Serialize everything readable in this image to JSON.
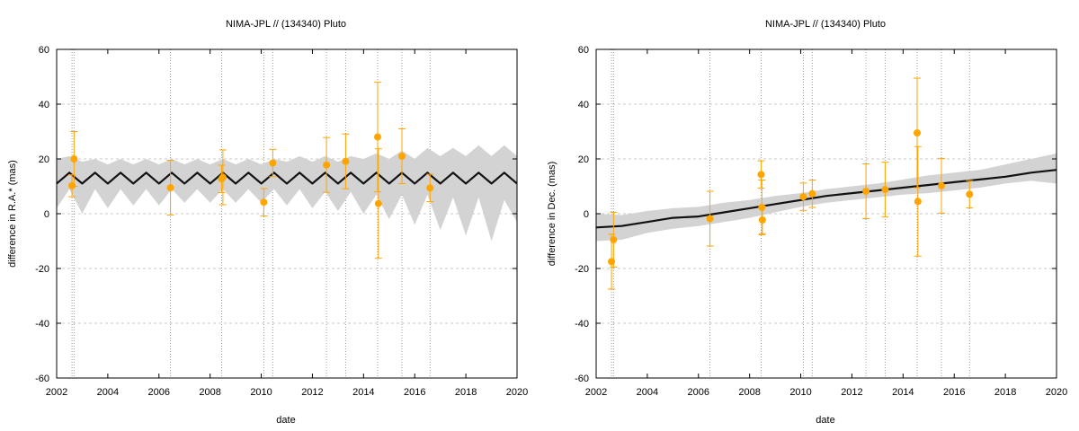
{
  "chart_data": [
    {
      "type": "line",
      "title": "NIMA-JPL // (134340) Pluto",
      "xlabel": "date",
      "ylabel": "difference in R.A.* (mas)",
      "xlim": [
        2002,
        2020
      ],
      "ylim": [
        -60,
        60
      ],
      "x_ticks": [
        2002,
        2004,
        2006,
        2008,
        2010,
        2012,
        2014,
        2016,
        2018,
        2020
      ],
      "y_ticks": [
        -60,
        -40,
        -20,
        0,
        20,
        40,
        60
      ],
      "grid": true,
      "line_color": "#111111",
      "band_color": "#d3d3d3",
      "point_color": "#ffa500",
      "model": {
        "x": [
          2002.0,
          2002.5,
          2003.0,
          2003.5,
          2004.0,
          2004.5,
          2005.0,
          2005.5,
          2006.0,
          2006.5,
          2007.0,
          2007.5,
          2008.0,
          2008.5,
          2009.0,
          2009.5,
          2010.0,
          2010.5,
          2011.0,
          2011.5,
          2012.0,
          2012.5,
          2013.0,
          2013.5,
          2014.0,
          2014.5,
          2015.0,
          2015.5,
          2016.0,
          2016.5,
          2017.0,
          2017.5,
          2018.0,
          2018.5,
          2019.0,
          2019.5,
          2020.0
        ],
        "y": [
          11,
          15,
          11,
          15,
          11,
          15,
          11,
          15,
          11,
          15,
          11,
          15,
          11,
          15,
          11,
          15,
          11,
          15,
          11,
          15,
          11,
          15,
          11,
          15,
          11,
          15,
          11,
          15,
          11,
          15,
          11,
          15,
          11,
          15,
          11,
          15,
          11
        ],
        "band_upper": [
          20,
          21,
          19,
          20,
          18,
          20,
          18,
          20,
          18,
          20,
          18,
          20,
          18,
          20,
          18,
          20,
          18,
          20,
          19,
          21,
          19,
          21,
          19,
          21,
          20,
          22,
          20,
          23,
          20,
          24,
          21,
          24,
          21,
          25,
          21,
          25,
          21
        ],
        "band_lower": [
          2,
          9,
          0,
          9,
          2,
          9,
          3,
          9,
          3,
          9,
          4,
          9,
          4,
          9,
          4,
          9,
          4,
          9,
          3,
          9,
          2,
          8,
          1,
          8,
          0,
          7,
          -2,
          7,
          -4,
          7,
          -6,
          6,
          -8,
          6,
          -10,
          5,
          -3
        ]
      },
      "observations": [
        {
          "x": 2002.6,
          "y": 10.2,
          "err": 4
        },
        {
          "x": 2002.68,
          "y": 20.0,
          "err": 10
        },
        {
          "x": 2006.45,
          "y": 9.5,
          "err": 10
        },
        {
          "x": 2008.45,
          "y": 12.7,
          "err": 5
        },
        {
          "x": 2008.5,
          "y": 13.3,
          "err": 10
        },
        {
          "x": 2010.1,
          "y": 4.2,
          "err": 5
        },
        {
          "x": 2010.45,
          "y": 18.5,
          "err": 5
        },
        {
          "x": 2012.55,
          "y": 17.8,
          "err": 10
        },
        {
          "x": 2013.3,
          "y": 19.1,
          "err": 10
        },
        {
          "x": 2014.55,
          "y": 28.0,
          "err": 20
        },
        {
          "x": 2014.58,
          "y": 3.7,
          "err": 20
        },
        {
          "x": 2015.5,
          "y": 21.0,
          "err": 10
        },
        {
          "x": 2016.6,
          "y": 9.4,
          "err": 5
        }
      ],
      "vlines": [
        2002.6,
        2002.68,
        2006.45,
        2008.45,
        2010.1,
        2010.45,
        2012.55,
        2013.3,
        2014.55,
        2015.5,
        2016.6
      ]
    },
    {
      "type": "line",
      "title": "NIMA-JPL // (134340) Pluto",
      "xlabel": "date",
      "ylabel": "difference in Dec. (mas)",
      "xlim": [
        2002,
        2020
      ],
      "ylim": [
        -60,
        60
      ],
      "x_ticks": [
        2002,
        2004,
        2006,
        2008,
        2010,
        2012,
        2014,
        2016,
        2018,
        2020
      ],
      "y_ticks": [
        -60,
        -40,
        -20,
        0,
        20,
        40,
        60
      ],
      "grid": true,
      "line_color": "#111111",
      "band_color": "#d3d3d3",
      "point_color": "#ffa500",
      "model": {
        "x": [
          2002.0,
          2003.0,
          2004.0,
          2005.0,
          2006.0,
          2007.0,
          2008.0,
          2009.0,
          2010.0,
          2011.0,
          2012.0,
          2013.0,
          2014.0,
          2015.0,
          2016.0,
          2017.0,
          2018.0,
          2019.0,
          2020.0
        ],
        "y": [
          -5,
          -4.5,
          -3,
          -1.5,
          -1,
          0.5,
          2,
          3.5,
          5,
          6.5,
          7.5,
          8.5,
          9.5,
          10.5,
          11.5,
          12.5,
          13.5,
          15,
          16
        ],
        "band_upper": [
          0,
          -0.5,
          1,
          2,
          2.5,
          4,
          5,
          6.5,
          7.5,
          9,
          10,
          11,
          12.5,
          14,
          15,
          16,
          18,
          20,
          22
        ],
        "band_lower": [
          -10,
          -9.5,
          -7,
          -5.5,
          -4.5,
          -3,
          -1.5,
          0.5,
          2.5,
          4,
          5,
          6,
          7,
          7.5,
          8.5,
          9.5,
          11,
          12,
          11
        ]
      },
      "observations": [
        {
          "x": 2002.6,
          "y": -17.5,
          "err": 10
        },
        {
          "x": 2002.68,
          "y": -9.5,
          "err": 10
        },
        {
          "x": 2006.45,
          "y": -1.8,
          "err": 10
        },
        {
          "x": 2008.45,
          "y": 14.3,
          "err": 5
        },
        {
          "x": 2008.48,
          "y": 2.3,
          "err": 10
        },
        {
          "x": 2008.5,
          "y": -2.3,
          "err": 5
        },
        {
          "x": 2010.1,
          "y": 6.2,
          "err": 5
        },
        {
          "x": 2010.45,
          "y": 7.3,
          "err": 5
        },
        {
          "x": 2012.55,
          "y": 8.2,
          "err": 10
        },
        {
          "x": 2013.3,
          "y": 8.8,
          "err": 10
        },
        {
          "x": 2014.55,
          "y": 29.5,
          "err": 20
        },
        {
          "x": 2014.58,
          "y": 4.5,
          "err": 20
        },
        {
          "x": 2015.5,
          "y": 10.2,
          "err": 10
        },
        {
          "x": 2016.6,
          "y": 7.1,
          "err": 5
        }
      ],
      "vlines": [
        2002.6,
        2002.68,
        2006.45,
        2008.45,
        2010.1,
        2010.45,
        2012.55,
        2013.3,
        2014.55,
        2015.5,
        2016.6
      ]
    }
  ]
}
